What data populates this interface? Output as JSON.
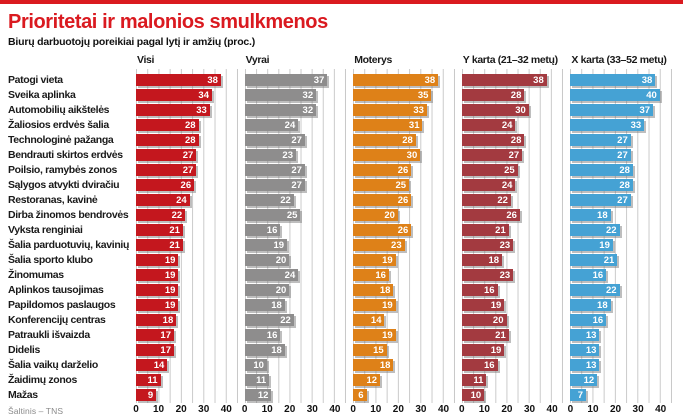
{
  "page": {
    "title": "Prioritetai ir malonios smulkmenos",
    "subtitle": "Biurų darbuotojų poreikiai pagal lytį ir amžių (proc.)",
    "source": "Šaltinis – TNS",
    "accent_red": "#da1a20"
  },
  "chart_data": {
    "type": "bar",
    "orientation": "horizontal",
    "title": "Prioritetai ir malonios smulkmenos",
    "subtitle": "Biurų darbuotojų poreikiai pagal lytį ir amžių (proc.)",
    "xlim": [
      0,
      45
    ],
    "ticks": [
      0,
      10,
      20,
      30,
      40
    ],
    "grid_interval": 5,
    "grid": true,
    "value_labels": "inside-end",
    "categories": [
      "Patogi vieta",
      "Sveika aplinka",
      "Automobilių aikštelės",
      "Žaliosios erdvės šalia",
      "Technologinė pažanga",
      "Bendrauti skirtos erdvės",
      "Poilsio, ramybės zonos",
      "Sąlygos atvykti dviračiu",
      "Restoranas, kavinė",
      "Dirba žinomos bendrovės",
      "Vyksta renginiai",
      "Šalia parduotuvių, kavinių",
      "Šalia sporto klubo",
      "Žinomumas",
      "Aplinkos tausojimas",
      "Papildomos paslaugos",
      "Konferencijų centras",
      "Patraukli išvaizda",
      "Didelis",
      "Šalia vaikų darželio",
      "Žaidimų zonos",
      "Mažas"
    ],
    "series": [
      {
        "name": "Visi",
        "color": "#c4171e",
        "values": [
          38,
          34,
          33,
          28,
          28,
          27,
          27,
          26,
          24,
          22,
          21,
          21,
          19,
          19,
          19,
          19,
          18,
          17,
          17,
          14,
          11,
          9
        ]
      },
      {
        "name": "Vyrai",
        "color": "#8e8d8d",
        "values": [
          37,
          32,
          32,
          24,
          27,
          23,
          27,
          27,
          22,
          25,
          16,
          19,
          20,
          24,
          20,
          18,
          22,
          16,
          18,
          10,
          11,
          12
        ]
      },
      {
        "name": "Moterys",
        "color": "#de8118",
        "values": [
          38,
          35,
          33,
          31,
          28,
          30,
          26,
          25,
          26,
          20,
          26,
          23,
          19,
          16,
          18,
          19,
          14,
          19,
          15,
          18,
          12,
          6
        ]
      },
      {
        "name": "Y karta (21–32 metų)",
        "color": "#a33a40",
        "values": [
          38,
          28,
          30,
          24,
          28,
          27,
          25,
          24,
          22,
          26,
          21,
          23,
          18,
          23,
          16,
          19,
          20,
          21,
          19,
          16,
          11,
          10
        ]
      },
      {
        "name": "X karta (33–52 metų)",
        "color": "#45a2d4",
        "values": [
          38,
          40,
          37,
          33,
          27,
          27,
          28,
          28,
          27,
          18,
          22,
          19,
          21,
          16,
          22,
          18,
          16,
          13,
          13,
          13,
          12,
          7
        ]
      }
    ]
  }
}
